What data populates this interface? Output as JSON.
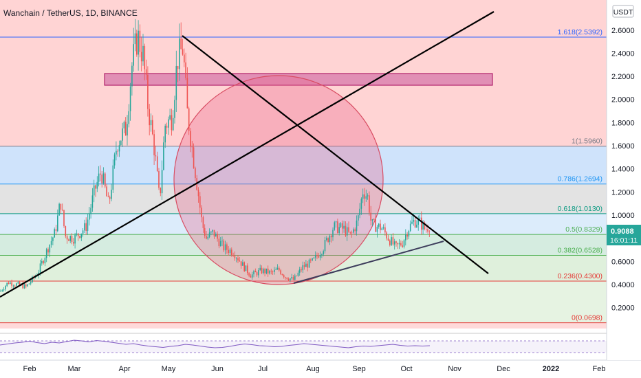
{
  "chart_data": {
    "type": "candlestick",
    "title": "Wanchain / TetherUS, 1D, BINANCE",
    "currency": "USDT",
    "ylim": [
      0.02,
      2.86
    ],
    "y_ticks": [
      "2.6000",
      "2.4000",
      "2.2000",
      "2.0000",
      "1.8000",
      "1.6000",
      "1.4000",
      "1.2000",
      "1.0000",
      "0.8000",
      "0.6000",
      "0.4000",
      "0.2000"
    ],
    "x_ticks": [
      "Feb",
      "Mar",
      "Apr",
      "May",
      "Jun",
      "Jul",
      "Aug",
      "Sep",
      "Oct",
      "Nov",
      "Dec",
      "2022",
      "Feb"
    ],
    "current_price": "0.9088",
    "countdown": "16:01:11",
    "fib_levels": [
      {
        "label": "1.618(2.5392)",
        "value": 2.5392,
        "line": "#2962ff",
        "fill": "#ffd4d4"
      },
      {
        "label": "1(1.5960)",
        "value": 1.596,
        "line": "#787b86",
        "fill": "#cfe3fb"
      },
      {
        "label": "0.786(1.2694)",
        "value": 1.2694,
        "line": "#2196f3",
        "fill": "#e3e3e3"
      },
      {
        "label": "0.618(1.0130)",
        "value": 1.013,
        "line": "#089981",
        "fill": "#dcecfb"
      },
      {
        "label": "0.5(0.8329)",
        "value": 0.8329,
        "line": "#4caf50",
        "fill": "#d5ece0"
      },
      {
        "label": "0.382(0.6528)",
        "value": 0.6528,
        "line": "#4caf50",
        "fill": "#dff0dc"
      },
      {
        "label": "0.236(0.4300)",
        "value": 0.43,
        "line": "#e53935",
        "fill": "#e6f3e2"
      },
      {
        "label": "0(0.0698)",
        "value": 0.0698,
        "line": "#e53935",
        "fill": "#ffd9d9"
      }
    ],
    "fib_top_fill": "#ffd4d4",
    "colors": {
      "up": "#26a69a",
      "down": "#ef5350",
      "rsi": "#7e57c2",
      "price_badge": "#26a69a"
    },
    "rsi": [
      52,
      55,
      58,
      60,
      63,
      59,
      56,
      60,
      58,
      62,
      66,
      64,
      61,
      65,
      63,
      60,
      57,
      54,
      56,
      52,
      49,
      47,
      45,
      48,
      50,
      54,
      52,
      49,
      46,
      44,
      45,
      48,
      52,
      55,
      53,
      50,
      49,
      47,
      48,
      51,
      53,
      56,
      54,
      52,
      50,
      48,
      46,
      44,
      47,
      49,
      48,
      50,
      52,
      54,
      51,
      49,
      50,
      49,
      50
    ]
  }
}
